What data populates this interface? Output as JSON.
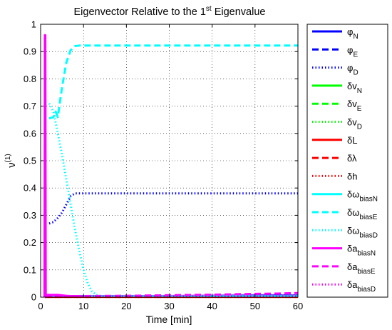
{
  "chart_data": {
    "type": "line",
    "title": "Eigenvector Relative to the 1",
    "title_sup": "st",
    "title_tail": " Eigenvalue",
    "xlabel": "Time [min]",
    "ylabel": "ν",
    "ylabel_sup": "(1)",
    "xlim": [
      0,
      60
    ],
    "ylim": [
      0,
      1
    ],
    "xticks": [
      0,
      10,
      20,
      30,
      40,
      50,
      60
    ],
    "yticks": [
      0,
      0.1,
      0.2,
      0.3,
      0.4,
      0.5,
      0.6,
      0.7,
      0.8,
      0.9,
      1
    ],
    "xtick_labels": [
      "0",
      "10",
      "20",
      "30",
      "40",
      "50",
      "60"
    ],
    "ytick_labels": [
      "0",
      "0.1",
      "0.2",
      "0.3",
      "0.4",
      "0.5",
      "0.6",
      "0.7",
      "0.8",
      "0.9",
      "1"
    ],
    "grid": true,
    "legend_position": "outside-right",
    "series": [
      {
        "name": "φ",
        "sub": "N",
        "color": "#0000ff",
        "style": "solid",
        "x": [
          1,
          2,
          5,
          10,
          20,
          30,
          40,
          50,
          60
        ],
        "y": [
          0.005,
          0.005,
          0.004,
          0.004,
          0.004,
          0.004,
          0.005,
          0.006,
          0.006
        ]
      },
      {
        "name": "φ",
        "sub": "E",
        "color": "#0000ff",
        "style": "dashed",
        "x": [
          1,
          2,
          5,
          10,
          20,
          30,
          40,
          50,
          60
        ],
        "y": [
          0.004,
          0.004,
          0.003,
          0.003,
          0.003,
          0.003,
          0.004,
          0.005,
          0.005
        ]
      },
      {
        "name": "φ",
        "sub": "D",
        "color": "#0000ff",
        "style": "dotted",
        "x": [
          2,
          3,
          4,
          5,
          6,
          7,
          8,
          10,
          20,
          30,
          40,
          50,
          60
        ],
        "y": [
          0.27,
          0.275,
          0.29,
          0.31,
          0.34,
          0.37,
          0.38,
          0.38,
          0.38,
          0.38,
          0.38,
          0.38,
          0.38
        ]
      },
      {
        "name": "δv",
        "sub": "N",
        "color": "#00ff00",
        "style": "solid",
        "x": [
          1,
          2,
          5,
          10,
          20,
          30,
          40,
          50,
          60
        ],
        "y": [
          0.003,
          0.003,
          0.003,
          0.003,
          0.003,
          0.003,
          0.003,
          0.003,
          0.003
        ]
      },
      {
        "name": "δv",
        "sub": "E",
        "color": "#00ff00",
        "style": "dashed",
        "x": [
          1,
          2,
          5,
          10,
          20,
          30,
          40,
          50,
          60
        ],
        "y": [
          0.002,
          0.002,
          0.002,
          0.002,
          0.002,
          0.002,
          0.002,
          0.002,
          0.002
        ]
      },
      {
        "name": "δv",
        "sub": "D",
        "color": "#00ff00",
        "style": "dotted",
        "x": [
          1,
          2,
          5,
          10,
          20,
          30,
          40,
          50,
          60
        ],
        "y": [
          0.002,
          0.002,
          0.002,
          0.002,
          0.002,
          0.002,
          0.002,
          0.002,
          0.002
        ]
      },
      {
        "name": "δL",
        "sub": "",
        "color": "#ff0000",
        "style": "solid",
        "x": [
          1,
          2,
          5,
          10,
          20,
          30,
          40,
          50,
          60
        ],
        "y": [
          0.001,
          0.001,
          0.001,
          0.001,
          0.001,
          0.001,
          0.001,
          0.001,
          0.001
        ]
      },
      {
        "name": "δλ",
        "sub": "",
        "color": "#ff0000",
        "style": "dashed",
        "x": [
          1,
          2,
          5,
          10,
          20,
          30,
          40,
          50,
          60
        ],
        "y": [
          0.001,
          0.001,
          0.001,
          0.001,
          0.001,
          0.001,
          0.001,
          0.001,
          0.001
        ]
      },
      {
        "name": "δh",
        "sub": "",
        "color": "#ff0000",
        "style": "dotted",
        "x": [
          1,
          2,
          5,
          10,
          20,
          30,
          40,
          50,
          60
        ],
        "y": [
          0.001,
          0.001,
          0.001,
          0.001,
          0.001,
          0.001,
          0.001,
          0.001,
          0.001
        ]
      },
      {
        "name": "δω",
        "sub": "biasN",
        "color": "#00ffff",
        "style": "solid",
        "x": [
          1,
          2,
          5,
          10,
          20,
          30,
          40,
          50,
          60
        ],
        "y": [
          0.003,
          0.003,
          0.003,
          0.003,
          0.003,
          0.003,
          0.003,
          0.003,
          0.003
        ]
      },
      {
        "name": "δω",
        "sub": "biasE",
        "color": "#00ffff",
        "style": "dashed",
        "x": [
          2,
          3,
          3.5,
          4,
          5,
          6,
          7,
          8,
          9,
          10,
          20,
          30,
          40,
          50,
          60
        ],
        "y": [
          0.655,
          0.66,
          0.68,
          0.66,
          0.77,
          0.86,
          0.905,
          0.92,
          0.922,
          0.922,
          0.922,
          0.922,
          0.922,
          0.922,
          0.922
        ]
      },
      {
        "name": "δω",
        "sub": "biasD",
        "color": "#00ffff",
        "style": "dotted",
        "x": [
          2,
          3,
          4,
          5,
          6,
          7,
          8,
          9,
          10,
          11,
          12,
          13,
          14,
          16,
          20,
          30,
          40,
          50,
          60
        ],
        "y": [
          0.71,
          0.68,
          0.6,
          0.52,
          0.43,
          0.34,
          0.25,
          0.17,
          0.1,
          0.05,
          0.02,
          0.008,
          0.004,
          0.003,
          0.003,
          0.003,
          0.003,
          0.003,
          0.003
        ]
      },
      {
        "name": "δa",
        "sub": "biasN",
        "color": "#ff00ff",
        "style": "solid",
        "x": [
          0.9,
          1.0,
          1.1,
          1.2,
          1.5,
          2,
          4,
          6,
          8,
          10
        ],
        "y": [
          0.0,
          0.96,
          0.96,
          0.0,
          0.008,
          0.008,
          0.008,
          0.005,
          0.003,
          0.002
        ]
      },
      {
        "name": "δa",
        "sub": "biasE",
        "color": "#ff00ff",
        "style": "dashed",
        "x": [
          1,
          2,
          5,
          10,
          20,
          30,
          40,
          50,
          55,
          60
        ],
        "y": [
          0.005,
          0.005,
          0.004,
          0.004,
          0.005,
          0.007,
          0.009,
          0.012,
          0.013,
          0.015
        ]
      },
      {
        "name": "δa",
        "sub": "biasD",
        "color": "#ff00ff",
        "style": "dotted",
        "x": [
          1,
          2,
          5,
          10,
          20,
          30,
          40,
          50,
          60
        ],
        "y": [
          0.003,
          0.003,
          0.003,
          0.003,
          0.003,
          0.004,
          0.004,
          0.004,
          0.005
        ]
      }
    ]
  }
}
